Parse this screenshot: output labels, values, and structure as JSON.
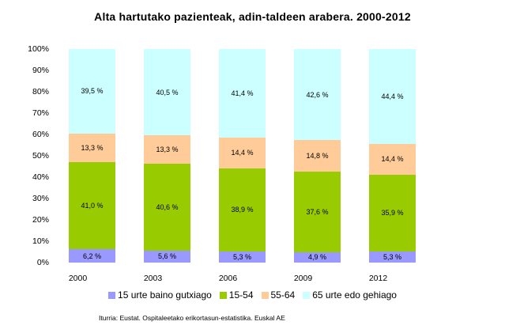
{
  "chart_data": {
    "type": "bar",
    "stacked": true,
    "percent": true,
    "title": "Alta hartutako pazienteak, adin-taldeen arabera. 2000-2012",
    "xlabel": "",
    "ylabel": "",
    "ylim": [
      0,
      100
    ],
    "yticks": [
      "0%",
      "10%",
      "20%",
      "30%",
      "40%",
      "50%",
      "60%",
      "70%",
      "80%",
      "90%",
      "100%"
    ],
    "categories": [
      "2000",
      "2003",
      "2006",
      "2009",
      "2012"
    ],
    "series": [
      {
        "name": "15 urte baino gutxiago",
        "color": "#9999ff",
        "values": [
          6.2,
          5.6,
          5.3,
          4.9,
          5.3
        ],
        "labels": [
          "6,2 %",
          "5,6 %",
          "5,3 %",
          "4,9 %",
          "5,3 %"
        ]
      },
      {
        "name": "15-54",
        "color": "#99cc00",
        "values": [
          41.0,
          40.6,
          38.9,
          37.6,
          35.9
        ],
        "labels": [
          "41,0 %",
          "40,6 %",
          "38,9 %",
          "37,6 %",
          "35,9 %"
        ]
      },
      {
        "name": "55-64",
        "color": "#ffcc99",
        "values": [
          13.3,
          13.3,
          14.4,
          14.8,
          14.4
        ],
        "labels": [
          "13,3 %",
          "13,3 %",
          "14,4 %",
          "14,8 %",
          "14,4 %"
        ]
      },
      {
        "name": "65 urte edo gehiago",
        "color": "#ccffff",
        "values": [
          39.5,
          40.5,
          41.4,
          42.6,
          44.4
        ],
        "labels": [
          "39,5 %",
          "40,5 %",
          "41,4 %",
          "42,6 %",
          "44,4 %"
        ]
      }
    ],
    "grid": false,
    "legend_position": "bottom",
    "source": "Iturria: Eustat. Ospitaleetako erikortasun-estatistika. Euskal AE"
  }
}
